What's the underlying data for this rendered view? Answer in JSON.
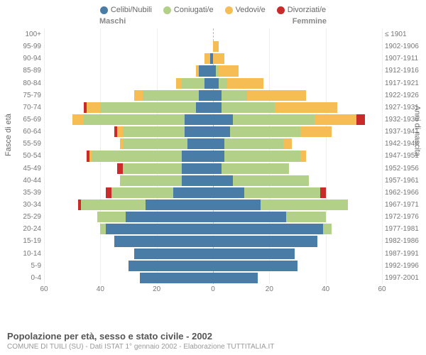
{
  "legend": {
    "items": [
      {
        "label": "Celibi/Nubili",
        "color": "#4a7ca8"
      },
      {
        "label": "Coniugati/e",
        "color": "#b2d088"
      },
      {
        "label": "Vedovi/e",
        "color": "#f5bd53"
      },
      {
        "label": "Divorziati/e",
        "color": "#c92a2a"
      }
    ]
  },
  "side_labels": {
    "left": "Maschi",
    "right": "Femmine"
  },
  "y_title_left": "Fasce di età",
  "y_title_right": "Anni di nascita",
  "footer": {
    "title": "Popolazione per età, sesso e stato civile - 2002",
    "sub": "COMUNE DI TUILI (SU) - Dati ISTAT 1° gennaio 2002 - Elaborazione TUTTITALIA.IT"
  },
  "colors": {
    "celibi": "#4a7ca8",
    "coniugati": "#b2d088",
    "vedovi": "#f5bd53",
    "divorziati": "#c92a2a",
    "grid": "#eeeeee",
    "center": "#bbbbbb",
    "bg": "#ffffff"
  },
  "axis": {
    "max": 60,
    "ticks": [
      60,
      40,
      20,
      0,
      20,
      40,
      60
    ],
    "tick_positions_pct": [
      0,
      16.67,
      33.33,
      50,
      66.67,
      83.33,
      100
    ]
  },
  "rows": [
    {
      "age": "100+",
      "year": "≤ 1901",
      "m": [
        0,
        0,
        0,
        0
      ],
      "f": [
        0,
        0,
        0,
        0
      ]
    },
    {
      "age": "95-99",
      "year": "1902-1906",
      "m": [
        0,
        0,
        0,
        0
      ],
      "f": [
        0,
        0,
        2,
        0
      ]
    },
    {
      "age": "90-94",
      "year": "1907-1911",
      "m": [
        1,
        0,
        2,
        0
      ],
      "f": [
        0,
        0,
        4,
        0
      ]
    },
    {
      "age": "85-89",
      "year": "1912-1916",
      "m": [
        5,
        0,
        1,
        0
      ],
      "f": [
        1,
        1,
        7,
        0
      ]
    },
    {
      "age": "80-84",
      "year": "1917-1921",
      "m": [
        3,
        8,
        2,
        0
      ],
      "f": [
        2,
        3,
        13,
        0
      ]
    },
    {
      "age": "75-79",
      "year": "1922-1926",
      "m": [
        5,
        20,
        3,
        0
      ],
      "f": [
        3,
        9,
        21,
        0
      ]
    },
    {
      "age": "70-74",
      "year": "1927-1931",
      "m": [
        6,
        34,
        5,
        1
      ],
      "f": [
        3,
        19,
        22,
        0
      ]
    },
    {
      "age": "65-69",
      "year": "1932-1936",
      "m": [
        10,
        36,
        4,
        0
      ],
      "f": [
        7,
        29,
        15,
        3
      ]
    },
    {
      "age": "60-64",
      "year": "1937-1941",
      "m": [
        10,
        22,
        2,
        1
      ],
      "f": [
        6,
        25,
        11,
        0
      ]
    },
    {
      "age": "55-59",
      "year": "1942-1946",
      "m": [
        9,
        23,
        1,
        0
      ],
      "f": [
        4,
        21,
        3,
        0
      ]
    },
    {
      "age": "50-54",
      "year": "1947-1951",
      "m": [
        11,
        32,
        1,
        1
      ],
      "f": [
        4,
        27,
        2,
        0
      ]
    },
    {
      "age": "45-49",
      "year": "1952-1956",
      "m": [
        11,
        21,
        0,
        2
      ],
      "f": [
        3,
        24,
        0,
        0
      ]
    },
    {
      "age": "40-44",
      "year": "1957-1961",
      "m": [
        11,
        22,
        0,
        0
      ],
      "f": [
        7,
        27,
        0,
        0
      ]
    },
    {
      "age": "35-39",
      "year": "1962-1966",
      "m": [
        14,
        22,
        0,
        2
      ],
      "f": [
        11,
        27,
        0,
        2
      ]
    },
    {
      "age": "30-34",
      "year": "1967-1971",
      "m": [
        24,
        23,
        0,
        1
      ],
      "f": [
        17,
        31,
        0,
        0
      ]
    },
    {
      "age": "25-29",
      "year": "1972-1976",
      "m": [
        31,
        10,
        0,
        0
      ],
      "f": [
        26,
        14,
        0,
        0
      ]
    },
    {
      "age": "20-24",
      "year": "1977-1981",
      "m": [
        38,
        2,
        0,
        0
      ],
      "f": [
        39,
        3,
        0,
        0
      ]
    },
    {
      "age": "15-19",
      "year": "1982-1986",
      "m": [
        35,
        0,
        0,
        0
      ],
      "f": [
        37,
        0,
        0,
        0
      ]
    },
    {
      "age": "10-14",
      "year": "1987-1991",
      "m": [
        28,
        0,
        0,
        0
      ],
      "f": [
        29,
        0,
        0,
        0
      ]
    },
    {
      "age": "5-9",
      "year": "1992-1996",
      "m": [
        30,
        0,
        0,
        0
      ],
      "f": [
        30,
        0,
        0,
        0
      ]
    },
    {
      "age": "0-4",
      "year": "1997-2001",
      "m": [
        26,
        0,
        0,
        0
      ],
      "f": [
        16,
        0,
        0,
        0
      ]
    }
  ]
}
